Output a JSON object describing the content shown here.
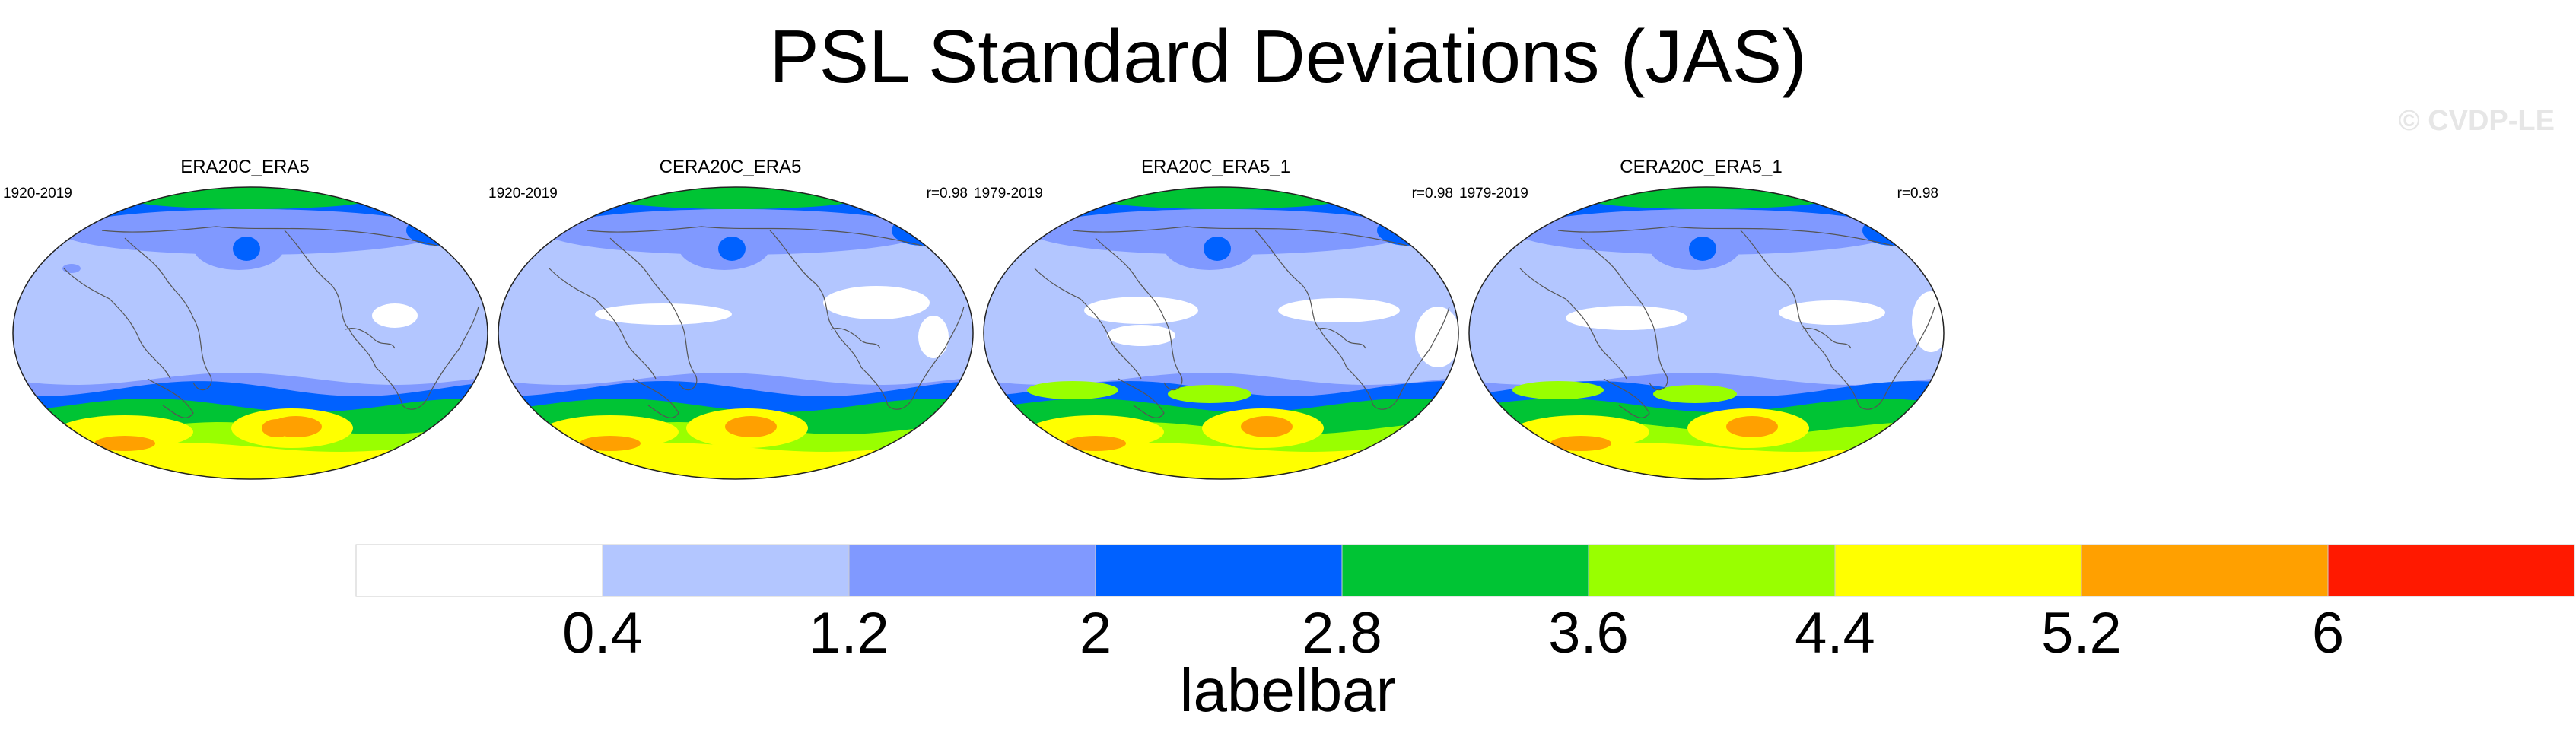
{
  "title": "PSL Standard Deviations (JAS)",
  "copyright": "© CVDP-LE",
  "panels": [
    {
      "name": "ERA20C_ERA5",
      "years": "1920-2019",
      "corr": "",
      "dataset": 0
    },
    {
      "name": "CERA20C_ERA5",
      "years": "1920-2019",
      "corr": "r=0.98",
      "dataset": 1
    },
    {
      "name": "ERA20C_ERA5_1",
      "years": "1979-2019",
      "corr": "r=0.98",
      "dataset": 2
    },
    {
      "name": "CERA20C_ERA5_1",
      "years": "1979-2019",
      "corr": "r=0.98",
      "dataset": 3
    }
  ],
  "labelbar": {
    "title": "labelbar",
    "levels": [
      "0.4",
      "1.2",
      "2",
      "2.8",
      "3.6",
      "4.4",
      "5.2",
      "6"
    ],
    "colors": [
      "#ffffff",
      "#b3c6ff",
      "#8099ff",
      "#0061ff",
      "#00c434",
      "#99ff00",
      "#ffff00",
      "#ffa000",
      "#ff1900"
    ]
  }
}
